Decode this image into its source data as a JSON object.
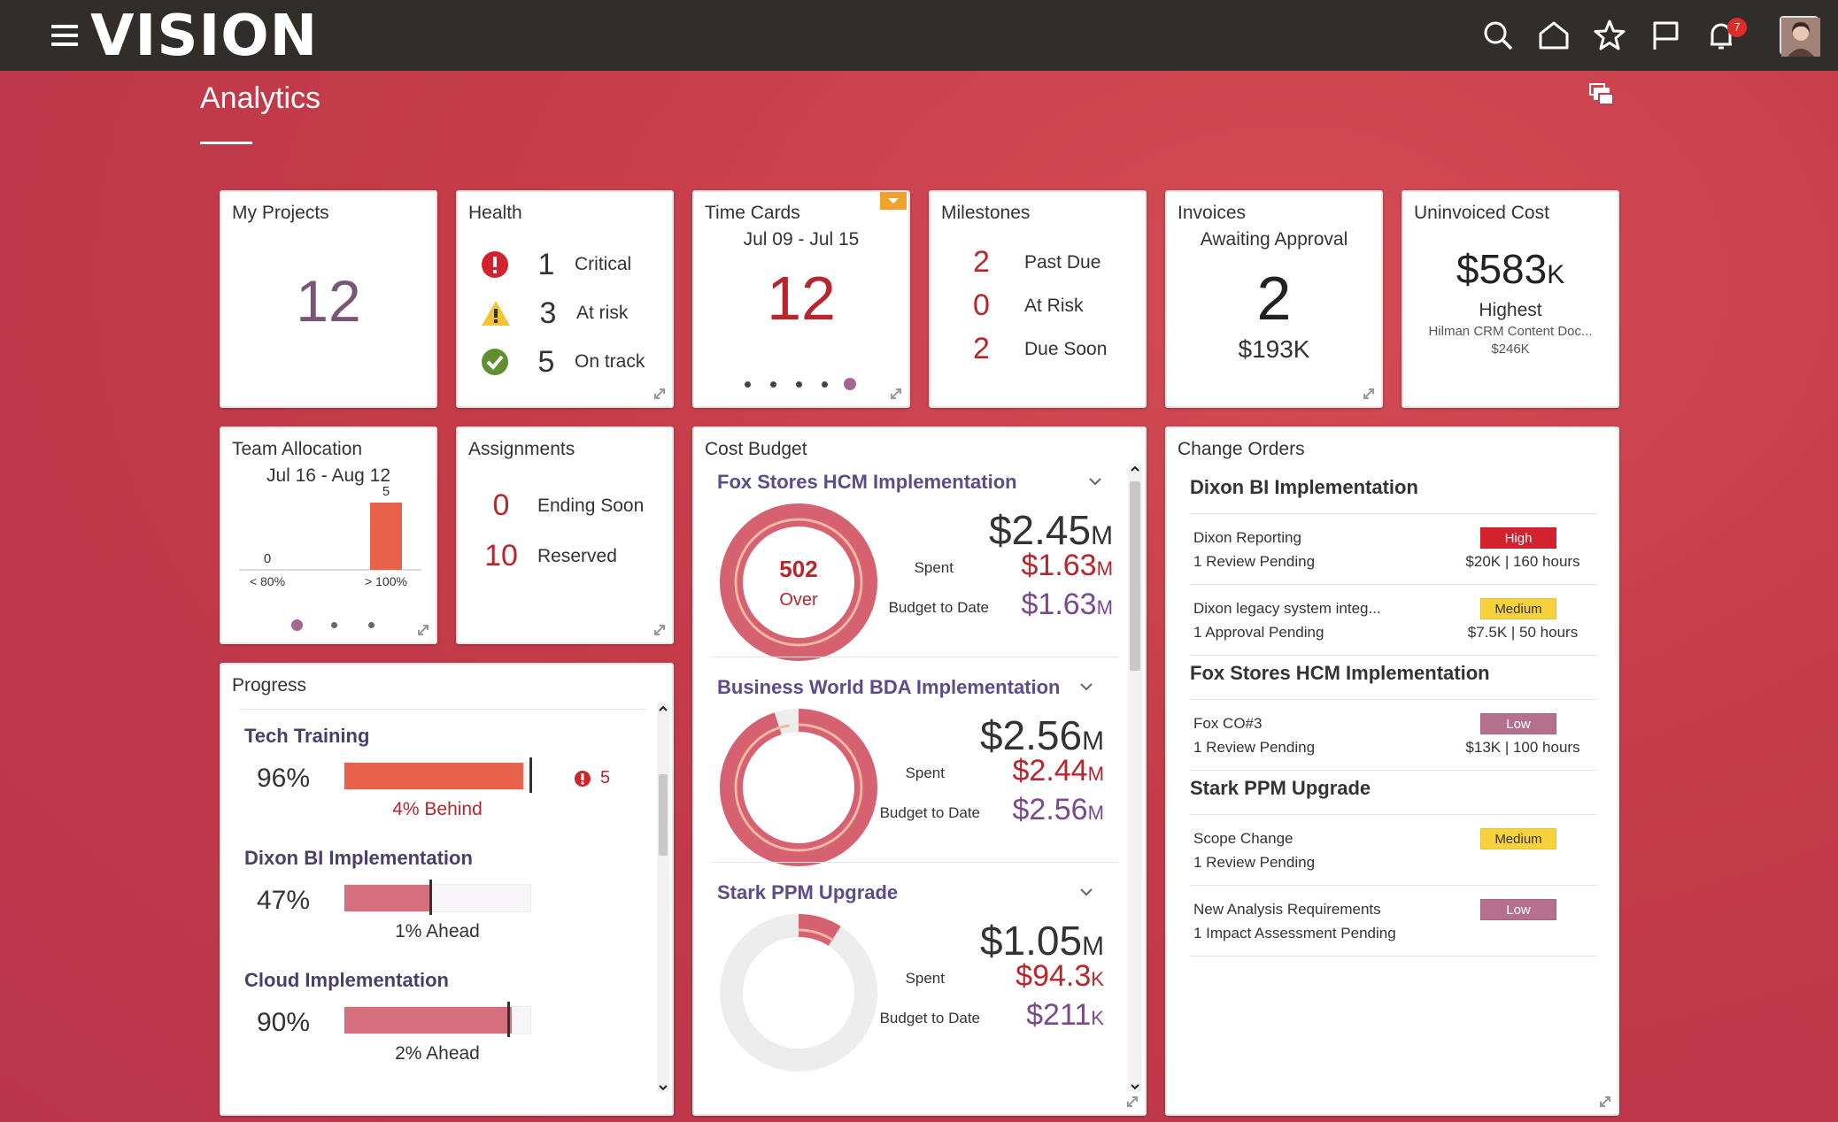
{
  "app": {
    "logo": "VISION",
    "page_title": "Analytics",
    "notification_count": "7"
  },
  "colors": {
    "accent_red": "#b7262d",
    "purple_title": "#5d4b8a",
    "orange_bar": "#e8614b",
    "pink_bar": "#d6707e",
    "high": "#d2222d",
    "medium": "#f8d23c",
    "low": "#b5708e"
  },
  "my_projects": {
    "title": "My Projects",
    "value": "12"
  },
  "health": {
    "title": "Health",
    "items": [
      {
        "icon": "critical-icon",
        "count": "1",
        "label": "Critical"
      },
      {
        "icon": "warning-icon",
        "count": "3",
        "label": "At risk"
      },
      {
        "icon": "check-icon",
        "count": "5",
        "label": "On track"
      }
    ]
  },
  "time_cards": {
    "title": "Time Cards",
    "range": "Jul 09 - Jul 15",
    "value": "12",
    "page_count": 5,
    "active_page": 5
  },
  "milestones": {
    "title": "Milestones",
    "items": [
      {
        "count": "2",
        "label": "Past Due"
      },
      {
        "count": "0",
        "label": "At Risk"
      },
      {
        "count": "2",
        "label": "Due Soon"
      }
    ]
  },
  "invoices": {
    "title": "Invoices",
    "subtitle": "Awaiting Approval",
    "count": "2",
    "amount": "$193K"
  },
  "uninvoiced": {
    "title": "Uninvoiced Cost",
    "amount": "$583",
    "amount_unit": "K",
    "highest_label": "Highest",
    "highest_name": "Hilman CRM Content Doc...",
    "highest_amount": "$246K"
  },
  "team_allocation": {
    "title": "Team Allocation",
    "range": "Jul 16 - Aug 12",
    "chart_data": {
      "type": "bar",
      "categories": [
        "< 80%",
        "> 100%"
      ],
      "values": [
        0,
        5
      ],
      "value_labels": [
        "0",
        "5"
      ]
    },
    "page_count": 3,
    "active_page": 1
  },
  "assignments": {
    "title": "Assignments",
    "items": [
      {
        "count": "0",
        "label": "Ending Soon"
      },
      {
        "count": "10",
        "label": "Reserved"
      }
    ]
  },
  "progress": {
    "title": "Progress",
    "items": [
      {
        "name": "Tech Training",
        "percent_label": "96%",
        "percent": 96,
        "target": 100,
        "status": "4% Behind",
        "issue_count": "5"
      },
      {
        "name": "Dixon BI Implementation",
        "percent_label": "47%",
        "percent": 47,
        "target": 46,
        "status": "1%  Ahead"
      },
      {
        "name": "Cloud Implementation",
        "percent_label": "90%",
        "percent": 90,
        "target": 88,
        "status": "2%  Ahead"
      }
    ]
  },
  "cost_budget": {
    "title": "Cost Budget",
    "spent_label": "Spent",
    "btd_label": "Budget to Date",
    "projects": [
      {
        "name": "Fox Stores HCM Implementation",
        "budget": "$2.45",
        "budget_unit": "M",
        "spent": "$1.63",
        "spent_unit": "M",
        "btd": "$1.63",
        "btd_unit": "M",
        "over_value": "502",
        "over_label": "Over",
        "consumed_pct": 100
      },
      {
        "name": "Business World BDA Implementation",
        "budget": "$2.56",
        "budget_unit": "M",
        "spent": "$2.44",
        "spent_unit": "M",
        "btd": "$2.56",
        "btd_unit": "M",
        "consumed_pct": 95
      },
      {
        "name": "Stark PPM Upgrade",
        "budget": "$1.05",
        "budget_unit": "M",
        "spent": "$94.3",
        "spent_unit": "K",
        "btd": "$211",
        "btd_unit": "K",
        "consumed_pct": 9
      }
    ]
  },
  "change_orders": {
    "title": "Change Orders",
    "groups": [
      {
        "name": "Dixon BI Implementation",
        "orders": [
          {
            "name": "Dixon Reporting",
            "status": "1 Review Pending",
            "priority": "High",
            "detail": "$20K  |  160 hours"
          },
          {
            "name": "Dixon legacy system integ...",
            "status": "1 Approval Pending",
            "priority": "Medium",
            "detail": "$7.5K  |  50 hours"
          }
        ]
      },
      {
        "name": "Fox Stores HCM Implementation",
        "orders": [
          {
            "name": "Fox CO#3",
            "status": "1 Review Pending",
            "priority": "Low",
            "detail": "$13K  |  100 hours"
          }
        ]
      },
      {
        "name": "Stark PPM Upgrade",
        "orders": [
          {
            "name": "Scope Change",
            "status": "1 Review Pending",
            "priority": "Medium",
            "detail": ""
          },
          {
            "name": "New Analysis Requirements",
            "status": "1 Impact Assessment Pending",
            "priority": "Low",
            "detail": ""
          }
        ]
      }
    ]
  }
}
